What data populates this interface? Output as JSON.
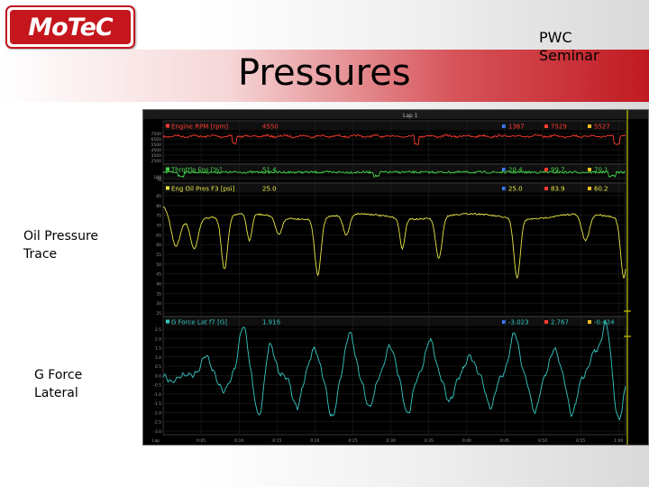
{
  "logo": "MoTeC",
  "title": "Pressures",
  "corner_label": {
    "line1": "PWC",
    "line2": "Seminar"
  },
  "callouts": {
    "oil": {
      "line1": "Oil Pressure",
      "line2": "Trace"
    },
    "g": {
      "line1": "G Force",
      "line2": "Lateral"
    }
  },
  "screenshot": {
    "lap_label": "Lap 1",
    "x_ticks": [
      "Lap",
      "0:05",
      "0:10",
      "0:15",
      "0:20",
      "0:25",
      "0:30",
      "0:35",
      "0:40",
      "0:45",
      "0:50",
      "0:55",
      "1:00"
    ],
    "channels": [
      {
        "name": "Engine RPM [rpm]",
        "color": "#ff3b30",
        "value": "4550",
        "min": "1367",
        "max": "7529",
        "avg": "5527",
        "y_ticks": [
          "7500",
          "6500",
          "5500",
          "4500",
          "3500",
          "2500"
        ]
      },
      {
        "name": "Throttle Pos [%]",
        "color": "#43d64a",
        "value": "51.4",
        "min": "20.4",
        "max": "99.7",
        "avg": "70.1",
        "y_ticks": [
          "100",
          "50",
          "0"
        ]
      },
      {
        "name": "Eng Oil Pres F3 [psi]",
        "color": "#e8e845",
        "value": "25.0",
        "min": "25.0",
        "max": "83.9",
        "avg": "60.2",
        "y_ticks": [
          "85",
          "80",
          "75",
          "70",
          "65",
          "60",
          "55",
          "50",
          "45",
          "40",
          "35",
          "30",
          "25"
        ]
      },
      {
        "name": "G Force Lat f7 [G]",
        "color": "#33c9c4",
        "value": "1.916",
        "min": "-3.023",
        "max": "2.767",
        "avg": "-0.424",
        "y_ticks": [
          "2.5",
          "2.0",
          "1.5",
          "1.0",
          "0.5",
          "0.0",
          "-0.5",
          "-1.0",
          "-1.5",
          "-2.0",
          "-2.5",
          "-3.0"
        ]
      }
    ],
    "stat_colors": {
      "min": "#3b7bff",
      "max": "#ff3b30",
      "avg": "#f0c020"
    },
    "cursor_color": "#e6e600"
  }
}
